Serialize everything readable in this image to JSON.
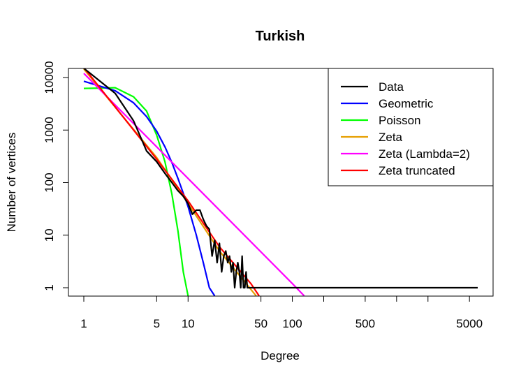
{
  "chart_data": {
    "type": "line",
    "title": "Turkish",
    "xlabel": "Degree",
    "ylabel": "Number of vertices",
    "x_scale": "log",
    "y_scale": "log",
    "xlim": [
      1,
      6500
    ],
    "ylim": [
      0.7,
      20000
    ],
    "grid": false,
    "legend_position": "top-right",
    "x_ticks": [
      {
        "value": 1,
        "label": "1"
      },
      {
        "value": 5,
        "label": "5"
      },
      {
        "value": 10,
        "label": "10"
      },
      {
        "value": 50,
        "label": "50"
      },
      {
        "value": 100,
        "label": "100"
      },
      {
        "value": 200,
        "label": ""
      },
      {
        "value": 500,
        "label": "500"
      },
      {
        "value": 1000,
        "label": ""
      },
      {
        "value": 2000,
        "label": ""
      },
      {
        "value": 5000,
        "label": "5000"
      }
    ],
    "y_ticks": [
      {
        "value": 1,
        "label": "1"
      },
      {
        "value": 10,
        "label": "10"
      },
      {
        "value": 100,
        "label": "100"
      },
      {
        "value": 1000,
        "label": "1000"
      },
      {
        "value": 10000,
        "label": "10000"
      }
    ],
    "series": [
      {
        "name": "Data",
        "color": "#000000",
        "points": [
          [
            1,
            15000
          ],
          [
            2,
            5000
          ],
          [
            3,
            1500
          ],
          [
            4,
            400
          ],
          [
            5,
            250
          ],
          [
            6,
            150
          ],
          [
            7,
            100
          ],
          [
            8,
            70
          ],
          [
            9,
            55
          ],
          [
            10,
            40
          ],
          [
            11,
            25
          ],
          [
            12,
            30
          ],
          [
            13,
            30
          ],
          [
            14,
            20
          ],
          [
            15,
            15
          ],
          [
            16,
            13
          ],
          [
            17,
            4
          ],
          [
            18,
            8
          ],
          [
            19,
            3
          ],
          [
            20,
            7
          ],
          [
            21,
            2
          ],
          [
            22,
            4
          ],
          [
            23,
            5
          ],
          [
            24,
            3
          ],
          [
            25,
            4
          ],
          [
            26,
            2
          ],
          [
            27,
            3
          ],
          [
            28,
            1
          ],
          [
            29,
            2
          ],
          [
            30,
            3
          ],
          [
            31,
            2
          ],
          [
            32,
            1
          ],
          [
            33,
            4
          ],
          [
            34,
            1
          ],
          [
            35,
            1
          ],
          [
            36,
            2
          ],
          [
            37,
            1
          ],
          [
            38,
            1
          ],
          [
            6000,
            1
          ]
        ]
      },
      {
        "name": "Geometric",
        "color": "#0000ff",
        "points": [
          [
            1,
            8500
          ],
          [
            2,
            5600
          ],
          [
            3,
            3300
          ],
          [
            4,
            1800
          ],
          [
            5,
            950
          ],
          [
            6,
            480
          ],
          [
            7,
            240
          ],
          [
            8,
            120
          ],
          [
            10,
            35
          ],
          [
            12,
            10
          ],
          [
            14,
            3
          ],
          [
            16,
            1
          ],
          [
            18,
            0.7
          ]
        ]
      },
      {
        "name": "Poisson",
        "color": "#00ff00",
        "points": [
          [
            1,
            6200
          ],
          [
            1.5,
            6300
          ],
          [
            2,
            6400
          ],
          [
            3,
            4300
          ],
          [
            4,
            2300
          ],
          [
            5,
            800
          ],
          [
            6,
            250
          ],
          [
            7,
            60
          ],
          [
            8,
            12
          ],
          [
            9,
            2
          ],
          [
            10,
            0.7
          ]
        ]
      },
      {
        "name": "Zeta",
        "color": "#e69f00",
        "points": [
          [
            1,
            14500
          ],
          [
            5,
            300
          ],
          [
            10,
            40
          ],
          [
            20,
            5
          ],
          [
            45,
            0.7
          ]
        ]
      },
      {
        "name": "Zeta (Lambda=2)",
        "color": "#ff00ff",
        "points": [
          [
            1,
            12000
          ],
          [
            10,
            120
          ],
          [
            100,
            1.2
          ],
          [
            130,
            0.7
          ]
        ]
      },
      {
        "name": "Zeta truncated",
        "color": "#ff0000",
        "points": [
          [
            1,
            15500
          ],
          [
            5,
            280
          ],
          [
            10,
            45
          ],
          [
            20,
            6
          ],
          [
            40,
            1.2
          ],
          [
            48,
            0.7
          ]
        ]
      }
    ]
  }
}
